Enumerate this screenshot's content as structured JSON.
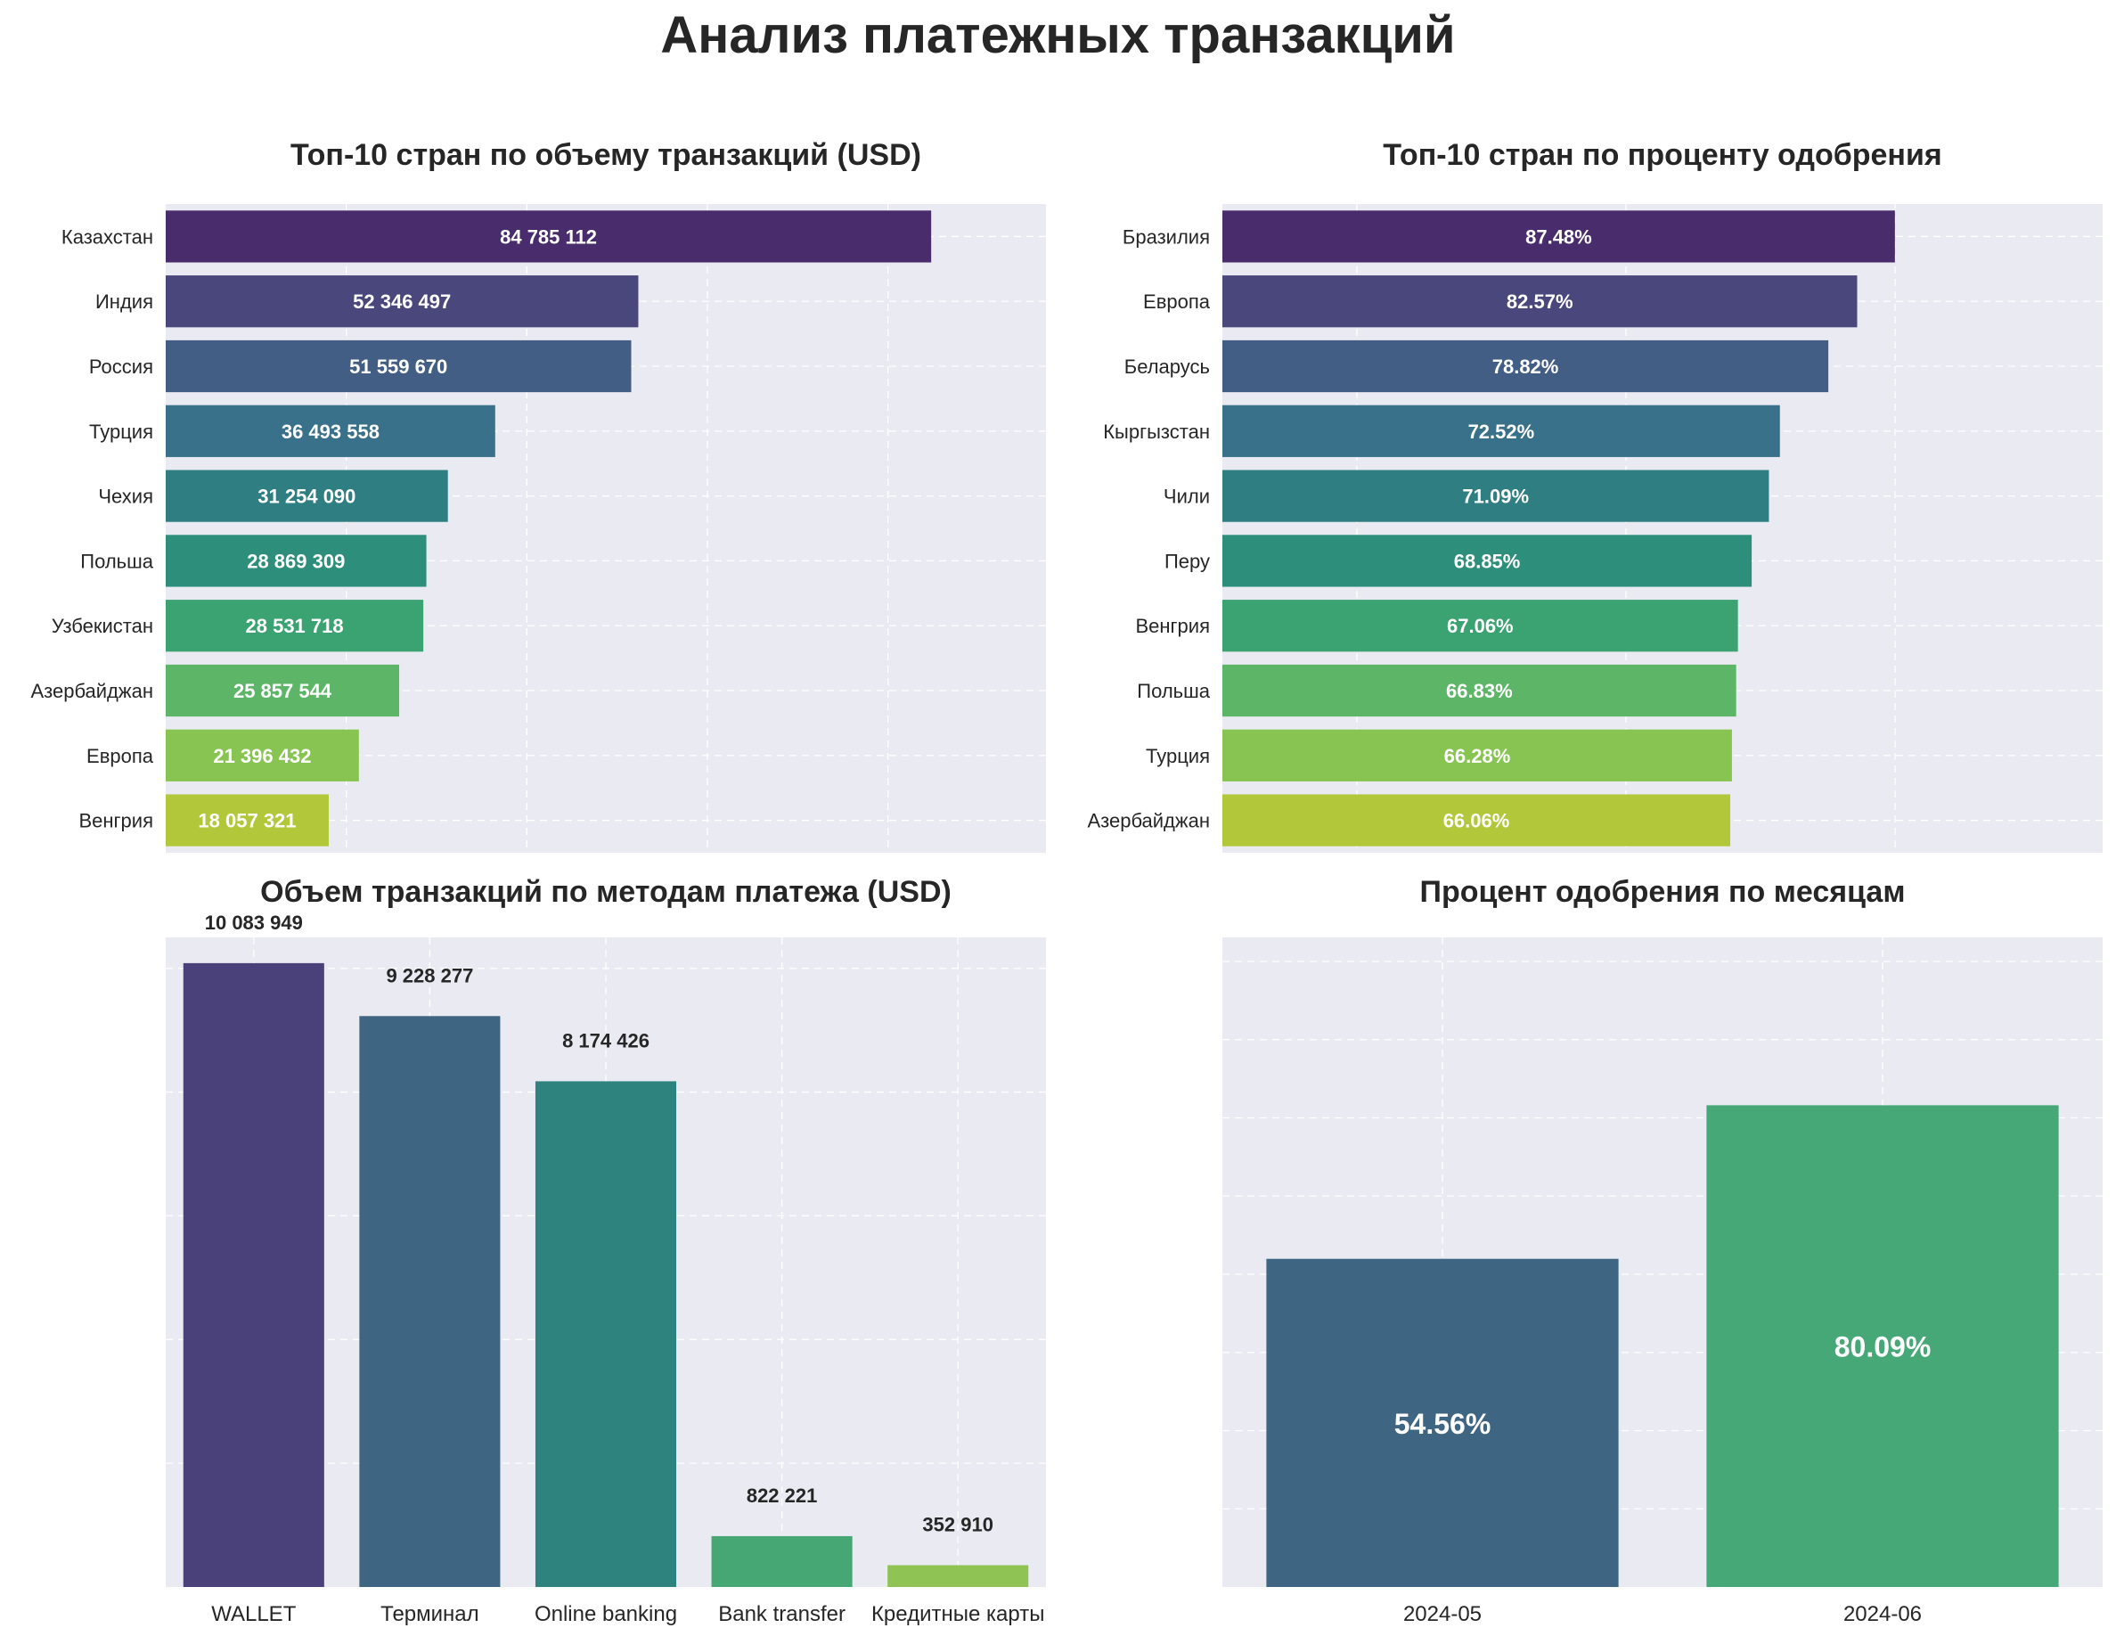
{
  "figure": {
    "title": "Анализ платежных транзакций"
  },
  "chart_data": [
    {
      "id": "volume-by-country",
      "type": "bar",
      "orientation": "horizontal",
      "title": "Топ-10 стран по объему транзакций (USD)",
      "categories": [
        "Казахстан",
        "Индия",
        "Россия",
        "Турция",
        "Чехия",
        "Польша",
        "Узбекистан",
        "Азербайджан",
        "Европа",
        "Венгрия"
      ],
      "values": [
        84785112,
        52346497,
        51559670,
        36493558,
        31254090,
        28869309,
        28531718,
        25857544,
        21396432,
        18057321
      ],
      "labels": [
        "84 785 112",
        "52 346 497",
        "51 559 670",
        "36 493 558",
        "31 254 090",
        "28 869 309",
        "28 531 718",
        "25 857 544",
        "21 396 432",
        "18 057 321"
      ],
      "colors": [
        "#482c6b",
        "#4a477c",
        "#425e85",
        "#39708a",
        "#2f7e82",
        "#2d8f7b",
        "#3ba271",
        "#5db667",
        "#88c452",
        "#b2c83a"
      ],
      "xlim": [
        0,
        97500000
      ],
      "grid": true
    },
    {
      "id": "approval-by-country",
      "type": "bar",
      "orientation": "horizontal",
      "title": "Топ-10 стран по проценту одобрения",
      "categories": [
        "Бразилия",
        "Европа",
        "Беларусь",
        "Кыргызстан",
        "Чили",
        "Перу",
        "Венгрия",
        "Польша",
        "Турция",
        "Азербайджан"
      ],
      "values": [
        87.48,
        82.57,
        78.82,
        72.52,
        71.09,
        68.85,
        67.06,
        66.83,
        66.28,
        66.06
      ],
      "labels": [
        "87.48%",
        "82.57%",
        "78.82%",
        "72.52%",
        "71.09%",
        "68.85%",
        "67.06%",
        "66.83%",
        "66.28%",
        "66.06%"
      ],
      "colors": [
        "#482c6b",
        "#4a477c",
        "#425e85",
        "#39708a",
        "#2f7e82",
        "#2d8f7b",
        "#3ba271",
        "#5db667",
        "#88c452",
        "#b2c83a"
      ],
      "xlim": [
        0,
        114.5
      ],
      "grid": true
    },
    {
      "id": "volume-by-method",
      "type": "bar",
      "orientation": "vertical",
      "title": "Объем транзакций по методам платежа (USD)",
      "categories": [
        "WALLET",
        "Терминал",
        "Online banking",
        "Bank transfer",
        "Кредитные карты"
      ],
      "values": [
        10083949,
        9228277,
        8174426,
        822221,
        352910
      ],
      "labels": [
        "10 083 949",
        "9 228 277",
        "8 174 426",
        "822 221",
        "352 910"
      ],
      "colors": [
        "#4a417a",
        "#3e6582",
        "#2f837e",
        "#47a774",
        "#8fc455"
      ],
      "ylim": [
        0,
        10500000
      ],
      "grid": true
    },
    {
      "id": "approval-by-month",
      "type": "bar",
      "orientation": "vertical",
      "title": "Процент одобрения по месяцам",
      "categories": [
        "2024-05",
        "2024-06"
      ],
      "values": [
        54.56,
        80.09
      ],
      "labels": [
        "54.56%",
        "80.09%"
      ],
      "colors": [
        "#3e6582",
        "#47a877"
      ],
      "ylim": [
        0,
        108
      ],
      "grid": true
    }
  ]
}
